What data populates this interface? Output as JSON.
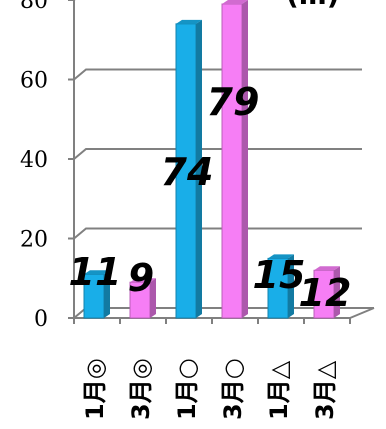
{
  "chart_data": {
    "type": "bar",
    "title": "",
    "categories": [
      "1月◎",
      "3月◎",
      "1月○",
      "3月○",
      "1月△",
      "3月△"
    ],
    "series": [
      {
        "values": [
          11,
          9,
          74,
          79,
          15,
          12
        ]
      }
    ],
    "bar_colors": [
      "#19aee8",
      "#f67ef5",
      "#19aee8",
      "#f67ef5",
      "#19aee8",
      "#f67ef5"
    ],
    "ylim": [
      0,
      80
    ],
    "yticks": [
      0,
      20,
      40,
      60,
      80
    ],
    "grid": true,
    "partial_title_glyph": "(…)"
  }
}
